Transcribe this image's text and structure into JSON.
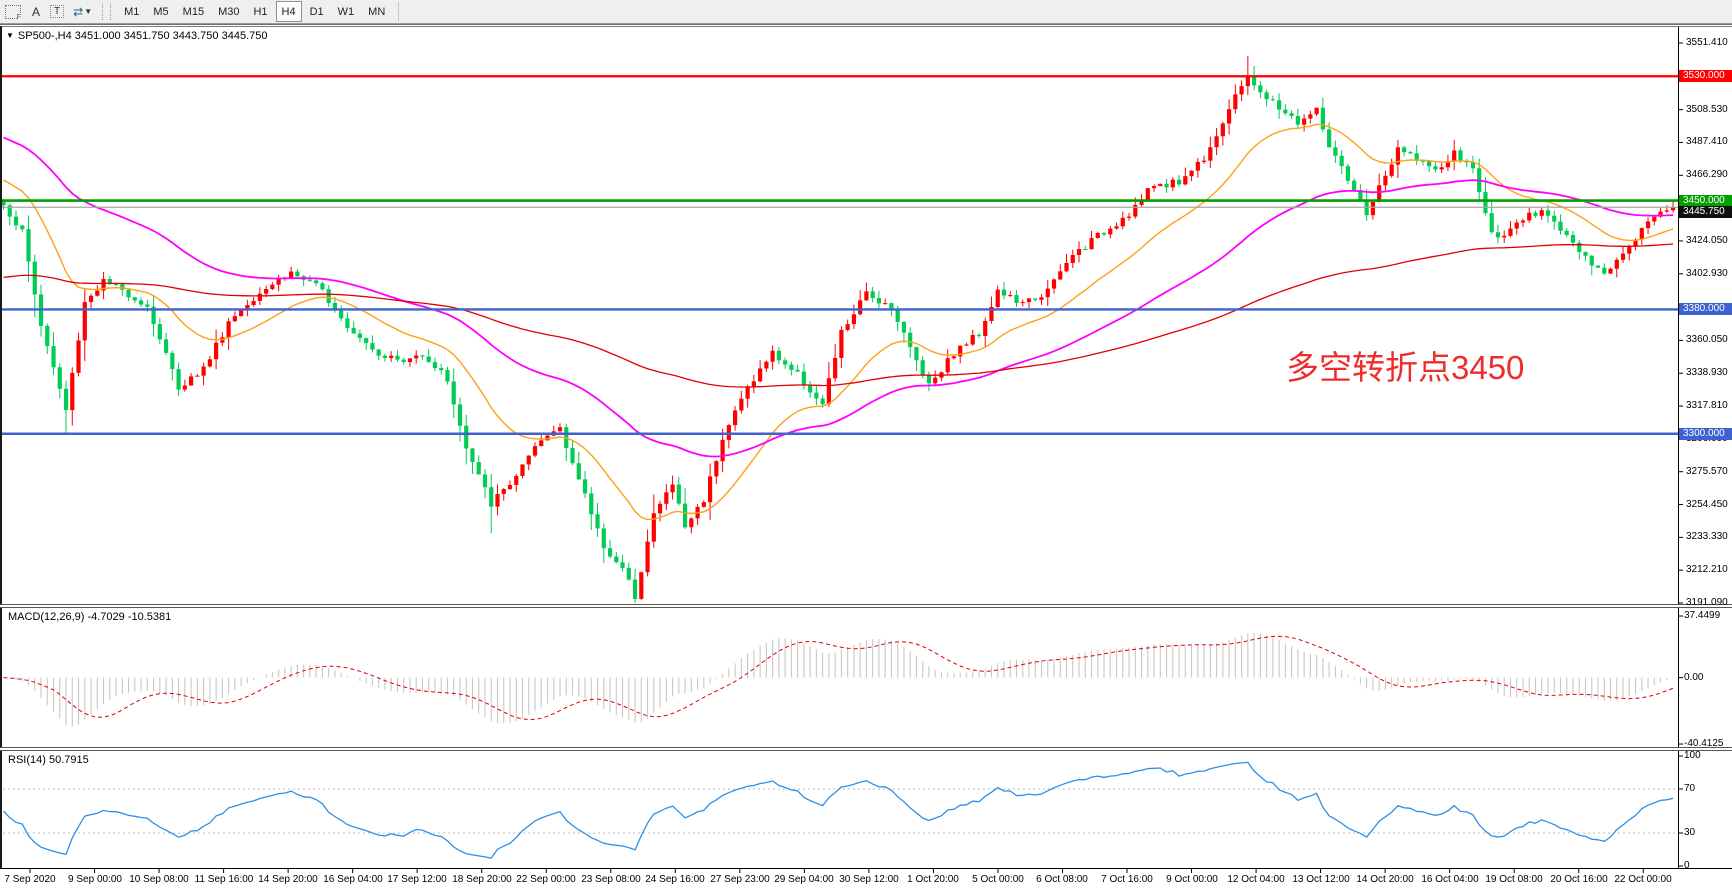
{
  "toolbar": {
    "f_icon_label": "F",
    "annotate_letter": "A",
    "text_tool": "T",
    "arrows_icon": "⇄",
    "caret": "▼",
    "timeframes": [
      "M1",
      "M5",
      "M15",
      "M30",
      "H1",
      "H4",
      "D1",
      "W1",
      "MN"
    ],
    "active_timeframe": "H4"
  },
  "symbol_header": {
    "triangle": "▼",
    "text": "SP500-,H4  3451.000 3451.750 3443.750 3445.750"
  },
  "annotation": {
    "text": "多空转折点3450",
    "color": "#EE2C2C"
  },
  "levels": [
    {
      "price": "3530.000",
      "value": 3530.0,
      "color": "#FF0000",
      "label_bg": "#FF0000",
      "width": 2.2
    },
    {
      "price": "3450.000",
      "value": 3450.0,
      "color": "#00A000",
      "label_bg": "#00A000",
      "width": 2.6
    },
    {
      "price": "3445.750",
      "value": 3445.75,
      "color": "#A6A6A6",
      "label_bg": "#111111",
      "width": 1.2
    },
    {
      "price": "3380.000",
      "value": 3380.0,
      "color": "#3E63CF",
      "label_bg": "#3E63CF",
      "width": 2.4
    },
    {
      "price": "3300.000",
      "value": 3300.0,
      "color": "#3E63CF",
      "label_bg": "#3E63CF",
      "width": 2.4
    }
  ],
  "price_axis_ticks": [
    "3551.410",
    "3508.530",
    "3487.410",
    "3466.290",
    "3424.050",
    "3402.930",
    "3360.050",
    "3338.930",
    "3317.810",
    "3296.690",
    "3275.570",
    "3254.450",
    "3233.330",
    "3212.210",
    "3191.090"
  ],
  "macd": {
    "label": "MACD(12,26,9) -4.7029 -10.5381",
    "axis": [
      "37.4499",
      "0.00",
      "-40.4125"
    ]
  },
  "rsi": {
    "label": "RSI(14) 50.7915",
    "axis": [
      "100",
      "70",
      "30",
      "0"
    ],
    "level_lines": [
      70,
      30
    ]
  },
  "time_axis": [
    "7 Sep 2020",
    "9 Sep 00:00",
    "10 Sep 08:00",
    "11 Sep 16:00",
    "14 Sep 20:00",
    "16 Sep 04:00",
    "17 Sep 12:00",
    "18 Sep 20:00",
    "22 Sep 00:00",
    "23 Sep 08:00",
    "24 Sep 16:00",
    "27 Sep 23:00",
    "29 Sep 04:00",
    "30 Sep 12:00",
    "1 Oct 20:00",
    "5 Oct 00:00",
    "6 Oct 08:00",
    "7 Oct 16:00",
    "9 Oct 00:00",
    "12 Oct 04:00",
    "13 Oct 12:00",
    "14 Oct 20:00",
    "16 Oct 04:00",
    "19 Oct 08:00",
    "20 Oct 16:00",
    "22 Oct 00:00"
  ],
  "chart_data": {
    "type": "candlestick",
    "symbol": "SP500-",
    "timeframe": "H4",
    "ohlc_display": {
      "open": "3451.000",
      "high": "3451.750",
      "low": "3443.750",
      "close": "3445.750"
    },
    "price_range": [
      3191.09,
      3551.41
    ],
    "candle_count": 268,
    "seed": 1337,
    "up_color": "#FF0000",
    "down_color": "#00CC55",
    "price_anchors": [
      [
        0,
        3447
      ],
      [
        3,
        3430
      ],
      [
        6,
        3370
      ],
      [
        10,
        3315
      ],
      [
        13,
        3385
      ],
      [
        16,
        3398
      ],
      [
        20,
        3390
      ],
      [
        23,
        3382
      ],
      [
        28,
        3330
      ],
      [
        32,
        3342
      ],
      [
        36,
        3372
      ],
      [
        41,
        3392
      ],
      [
        46,
        3404
      ],
      [
        51,
        3392
      ],
      [
        55,
        3370
      ],
      [
        60,
        3352
      ],
      [
        64,
        3346
      ],
      [
        67,
        3352
      ],
      [
        71,
        3335
      ],
      [
        74,
        3290
      ],
      [
        78,
        3255
      ],
      [
        81,
        3268
      ],
      [
        86,
        3295
      ],
      [
        89,
        3305
      ],
      [
        92,
        3270
      ],
      [
        96,
        3228
      ],
      [
        99,
        3212
      ],
      [
        101,
        3196
      ],
      [
        104,
        3248
      ],
      [
        107,
        3268
      ],
      [
        109,
        3240
      ],
      [
        112,
        3258
      ],
      [
        115,
        3298
      ],
      [
        119,
        3330
      ],
      [
        123,
        3352
      ],
      [
        127,
        3338
      ],
      [
        131,
        3318
      ],
      [
        134,
        3365
      ],
      [
        138,
        3390
      ],
      [
        142,
        3382
      ],
      [
        145,
        3355
      ],
      [
        148,
        3332
      ],
      [
        152,
        3352
      ],
      [
        156,
        3365
      ],
      [
        159,
        3392
      ],
      [
        163,
        3383
      ],
      [
        167,
        3392
      ],
      [
        171,
        3415
      ],
      [
        176,
        3430
      ],
      [
        180,
        3442
      ],
      [
        184,
        3460
      ],
      [
        188,
        3462
      ],
      [
        192,
        3478
      ],
      [
        196,
        3508
      ],
      [
        199,
        3532
      ],
      [
        201,
        3518
      ],
      [
        204,
        3510
      ],
      [
        207,
        3500
      ],
      [
        210,
        3508
      ],
      [
        212,
        3485
      ],
      [
        215,
        3462
      ],
      [
        218,
        3442
      ],
      [
        220,
        3458
      ],
      [
        223,
        3482
      ],
      [
        226,
        3478
      ],
      [
        229,
        3468
      ],
      [
        232,
        3480
      ],
      [
        235,
        3470
      ],
      [
        238,
        3428
      ],
      [
        241,
        3430
      ],
      [
        244,
        3440
      ],
      [
        247,
        3442
      ],
      [
        250,
        3428
      ],
      [
        253,
        3412
      ],
      [
        256,
        3402
      ],
      [
        259,
        3418
      ],
      [
        262,
        3432
      ],
      [
        265,
        3444
      ],
      [
        267,
        3445.75
      ]
    ],
    "wick_overrides": {
      "10": {
        "low": 3300
      },
      "78": {
        "low": 3236
      },
      "101": {
        "low": 3191.1
      },
      "199": {
        "high": 3543
      }
    },
    "moving_averages": [
      {
        "period": 20,
        "color": "#FFA017",
        "init": 3465,
        "width": 1.4
      },
      {
        "period": 60,
        "color": "#FF00FF",
        "init": 3492,
        "width": 1.8
      },
      {
        "period": 160,
        "color": "#E00000",
        "init": 3400,
        "width": 1.3
      }
    ],
    "macd_params": [
      12,
      26,
      9
    ],
    "macd_axis_range": [
      -40.4125,
      37.4499
    ],
    "histogram_color": "#C8C8C8",
    "signal_color": "#E00000",
    "rsi_period": 14,
    "rsi_color": "#2F8FE8",
    "rsi_level_color": "#BBBBBB"
  }
}
